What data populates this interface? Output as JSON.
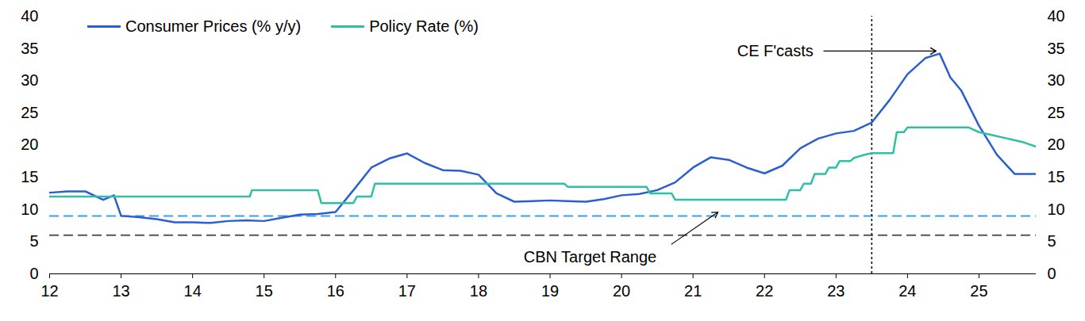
{
  "chart_data": {
    "type": "line",
    "xlim": [
      12,
      25.8
    ],
    "xticks": [
      12,
      13,
      14,
      15,
      16,
      17,
      18,
      19,
      20,
      21,
      22,
      23,
      24,
      25
    ],
    "ylim": [
      0,
      40
    ],
    "yticks": [
      0,
      5,
      10,
      15,
      20,
      25,
      30,
      35,
      40
    ],
    "y2lim": [
      0,
      40
    ],
    "y2ticks": [
      0,
      5,
      10,
      15,
      20,
      25,
      30,
      35,
      40
    ],
    "legend": "top-left",
    "grid": false,
    "series": [
      {
        "name": "Consumer Prices (% y/y)",
        "color": "#2b5fd0",
        "line_style": "solid",
        "x": [
          12,
          12.25,
          12.5,
          12.75,
          12.9,
          13,
          13.25,
          13.5,
          13.75,
          14,
          14.25,
          14.5,
          14.75,
          15,
          15.25,
          15.5,
          15.75,
          16,
          16.25,
          16.5,
          16.75,
          17,
          17.25,
          17.5,
          17.75,
          18,
          18.25,
          18.5,
          18.75,
          19,
          19.25,
          19.5,
          19.75,
          20,
          20.25,
          20.5,
          20.75,
          21,
          21.25,
          21.5,
          21.75,
          22,
          22.25,
          22.5,
          22.75,
          23,
          23.25,
          23.5,
          23.75,
          24,
          24.25,
          24.45,
          24.6,
          24.75,
          25,
          25.25,
          25.5,
          25.8
        ],
        "values": [
          12.6,
          12.8,
          12.8,
          11.5,
          12.2,
          9.0,
          8.8,
          8.5,
          8.0,
          8.0,
          7.9,
          8.2,
          8.3,
          8.2,
          8.7,
          9.2,
          9.3,
          9.6,
          13.0,
          16.5,
          17.9,
          18.7,
          17.2,
          16.1,
          16.0,
          15.4,
          12.5,
          11.2,
          11.3,
          11.4,
          11.3,
          11.2,
          11.6,
          12.2,
          12.4,
          13.0,
          14.2,
          16.5,
          18.1,
          17.7,
          16.5,
          15.6,
          16.8,
          19.5,
          21.0,
          21.8,
          22.2,
          23.5,
          27.0,
          31.0,
          33.5,
          34.2,
          30.5,
          28.5,
          23.0,
          18.5,
          15.5,
          15.5
        ]
      },
      {
        "name": "Policy Rate (%)",
        "color": "#2ebfa5",
        "line_style": "solid",
        "x": [
          12,
          14.8,
          14.83,
          15.75,
          15.8,
          16.25,
          16.3,
          16.5,
          16.55,
          19.2,
          19.25,
          20.35,
          20.4,
          20.7,
          20.75,
          22.3,
          22.35,
          22.5,
          22.55,
          22.65,
          22.7,
          22.85,
          22.9,
          23,
          23.05,
          23.2,
          23.25,
          23.4,
          23.5,
          23.8,
          23.85,
          23.95,
          24,
          24.85,
          25,
          25.2,
          25.4,
          25.6,
          25.8
        ],
        "values": [
          12,
          12,
          13,
          13,
          11,
          11,
          12,
          12,
          14,
          14,
          13.5,
          13.5,
          12.5,
          12.5,
          11.5,
          11.5,
          13,
          13,
          14,
          14,
          15.5,
          15.5,
          16.5,
          16.5,
          17.5,
          17.5,
          18,
          18.5,
          18.75,
          18.75,
          22,
          22,
          22.75,
          22.75,
          22,
          21.5,
          21,
          20.5,
          19.75
        ]
      }
    ],
    "annotations": [
      {
        "text": "CE F'casts",
        "x": 23.5,
        "line_style": "dotted"
      },
      {
        "text": "CBN Target Range",
        "values": [
          6,
          9
        ],
        "colors": [
          "#555555",
          "#3aa0e6"
        ],
        "line_style": "dashed"
      }
    ]
  }
}
